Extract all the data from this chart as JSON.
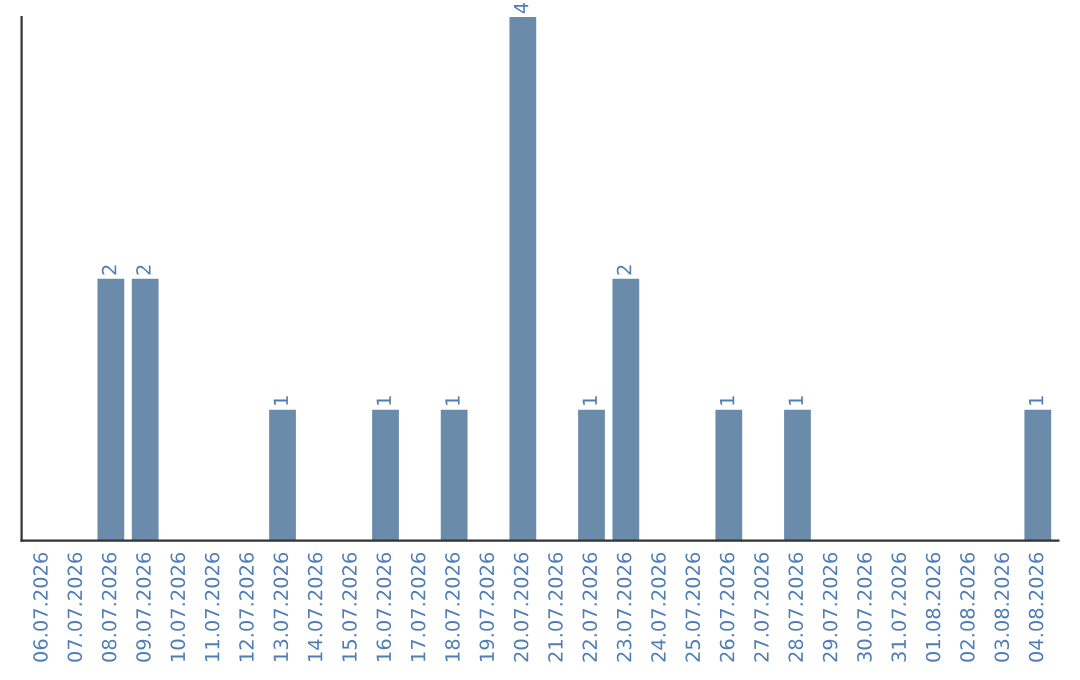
{
  "chart_data": {
    "type": "bar",
    "categories": [
      "06.07.2026",
      "07.07.2026",
      "08.07.2026",
      "09.07.2026",
      "10.07.2026",
      "11.07.2026",
      "12.07.2026",
      "13.07.2026",
      "14.07.2026",
      "15.07.2026",
      "16.07.2026",
      "17.07.2026",
      "18.07.2026",
      "19.07.2026",
      "20.07.2026",
      "21.07.2026",
      "22.07.2026",
      "23.07.2026",
      "24.07.2026",
      "25.07.2026",
      "26.07.2026",
      "27.07.2026",
      "28.07.2026",
      "29.07.2026",
      "30.07.2026",
      "31.07.2026",
      "01.08.2026",
      "02.08.2026",
      "03.08.2026",
      "04.08.2026"
    ],
    "values": [
      0,
      0,
      2,
      2,
      0,
      0,
      0,
      1,
      0,
      0,
      1,
      0,
      1,
      0,
      4,
      0,
      1,
      2,
      0,
      0,
      1,
      0,
      1,
      0,
      0,
      0,
      0,
      0,
      0,
      1
    ],
    "value_labels": [
      null,
      null,
      "2",
      "2",
      null,
      null,
      null,
      "1",
      null,
      null,
      "1",
      null,
      "1",
      null,
      "4",
      null,
      "1",
      "2",
      null,
      null,
      "1",
      null,
      "1",
      null,
      null,
      null,
      null,
      null,
      null,
      "1"
    ],
    "color": "#6b8baa",
    "tick_labels": "x",
    "grid": false,
    "legend": false
  }
}
